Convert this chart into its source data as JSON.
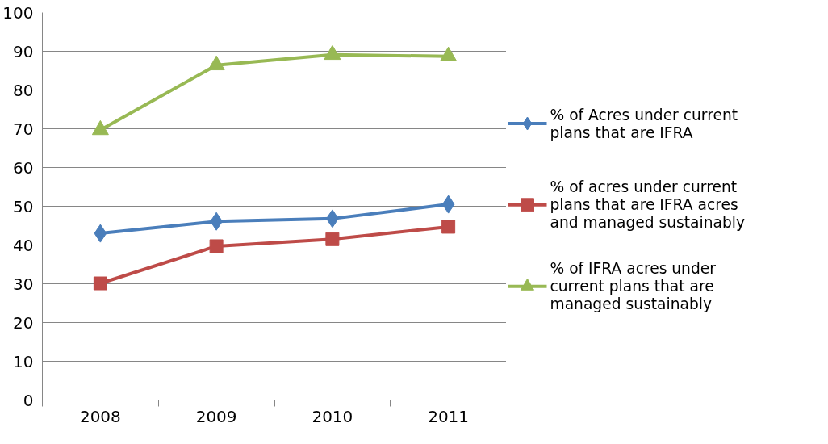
{
  "chart_data": {
    "type": "line",
    "categories": [
      "2008",
      "2009",
      "2010",
      "2011"
    ],
    "ylim": [
      0,
      100
    ],
    "yticks": [
      0,
      10,
      20,
      30,
      40,
      50,
      60,
      70,
      80,
      90,
      100
    ],
    "grid": "y",
    "legend": "right",
    "line_style": "solid",
    "series": [
      {
        "name": "% of Acres under current plans that are IFRA",
        "color": "#4a7ebb",
        "marker": "diamond",
        "values": [
          43.0,
          46.1,
          46.8,
          50.5
        ]
      },
      {
        "name": "% of acres under current plans that are IFRA acres and managed sustainably",
        "color": "#be4b48",
        "marker": "square",
        "values": [
          30.1,
          39.7,
          41.5,
          44.7
        ]
      },
      {
        "name": "% of IFRA acres under current plans that are managed sustainably",
        "color": "#98b954",
        "marker": "triangle",
        "values": [
          69.7,
          86.4,
          89.1,
          88.7
        ]
      }
    ]
  }
}
